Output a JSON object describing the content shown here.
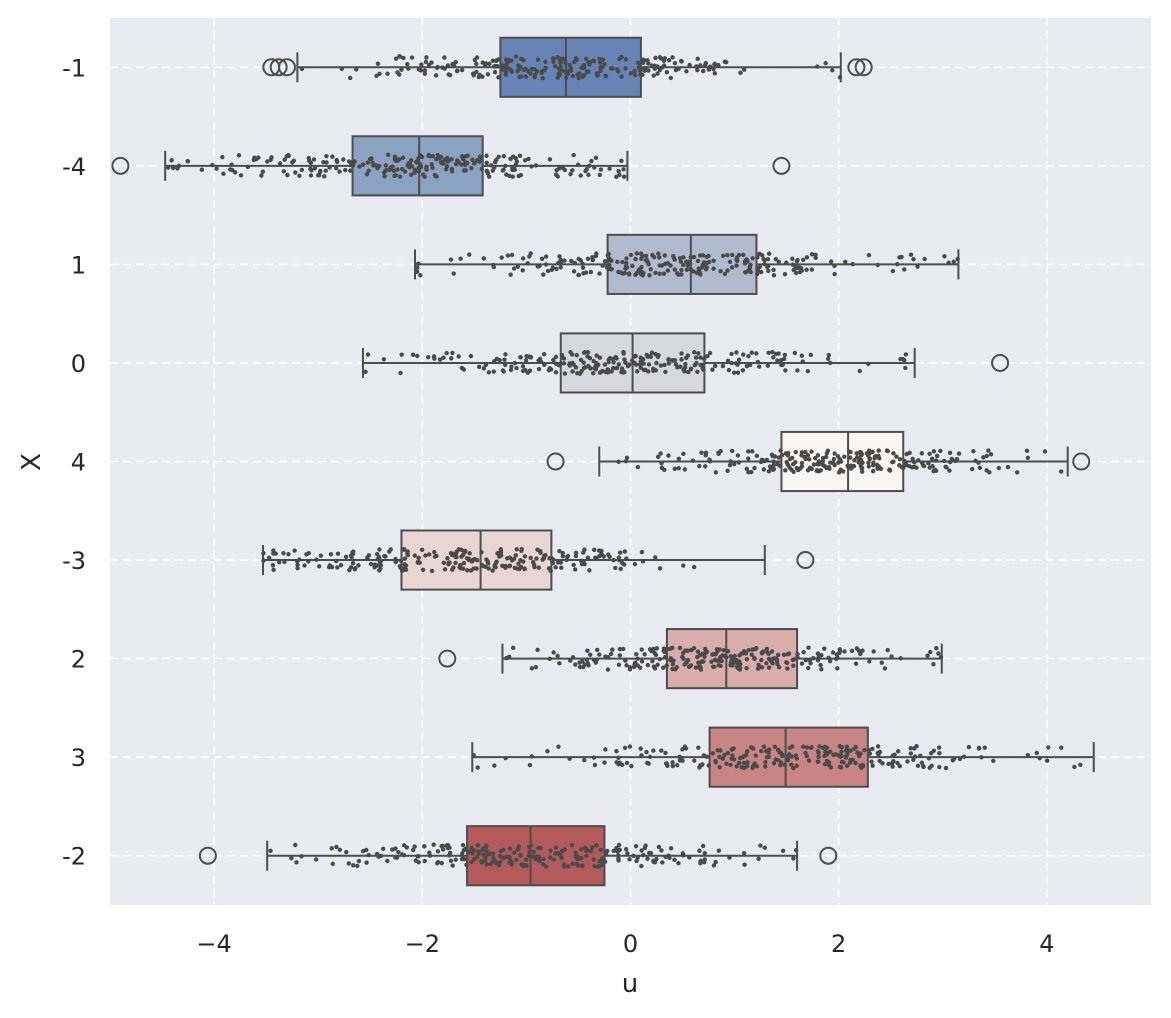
{
  "chart_data": {
    "type": "boxplot",
    "orientation": "horizontal",
    "xlabel": "u",
    "ylabel": "X",
    "xlim": [
      -5.0,
      5.0
    ],
    "xticks": [
      -4,
      -2,
      0,
      2,
      4
    ],
    "xtick_labels": [
      "−4",
      "−2",
      "0",
      "2",
      "4"
    ],
    "grid": true,
    "style": "seaborn-darkgrid-dashed",
    "colors": {
      "background": "#eaeaf2",
      "grid": "#ffffff",
      "edge": "#4d4d4d",
      "points": "#4a4a4a"
    },
    "categories": [
      "-1",
      "-4",
      "1",
      "0",
      "4",
      "-3",
      "2",
      "3",
      "-2"
    ],
    "boxes": [
      {
        "category": "-1",
        "whisker_low": -3.2,
        "q1": -1.25,
        "median": -0.62,
        "q3": 0.1,
        "whisker_high": 2.02,
        "outliers": [
          -3.45,
          -3.38,
          -3.3,
          2.17,
          2.24
        ],
        "color": "#6685b6"
      },
      {
        "category": "-4",
        "whisker_low": -4.47,
        "q1": -2.67,
        "median": -2.03,
        "q3": -1.42,
        "whisker_high": -0.03,
        "outliers": [
          -4.9,
          1.45
        ],
        "color": "#8ca2c3"
      },
      {
        "category": "1",
        "whisker_low": -2.07,
        "q1": -0.22,
        "median": 0.58,
        "q3": 1.21,
        "whisker_high": 3.15,
        "outliers": [],
        "color": "#b1bbcf"
      },
      {
        "category": "0",
        "whisker_low": -2.57,
        "q1": -0.67,
        "median": 0.02,
        "q3": 0.71,
        "whisker_high": 2.73,
        "outliers": [
          3.55
        ],
        "color": "#d5d8de"
      },
      {
        "category": "4",
        "whisker_low": -0.3,
        "q1": 1.45,
        "median": 2.09,
        "q3": 2.62,
        "whisker_high": 4.2,
        "outliers": [
          -0.72,
          4.33
        ],
        "color": "#f8f5f3"
      },
      {
        "category": "-3",
        "whisker_low": -3.53,
        "q1": -2.2,
        "median": -1.44,
        "q3": -0.76,
        "whisker_high": 1.29,
        "outliers": [
          1.68
        ],
        "color": "#e9d5d3"
      },
      {
        "category": "2",
        "whisker_low": -1.23,
        "q1": 0.35,
        "median": 0.92,
        "q3": 1.6,
        "whisker_high": 2.99,
        "outliers": [
          -1.76
        ],
        "color": "#d9adab"
      },
      {
        "category": "3",
        "whisker_low": -1.52,
        "q1": 0.76,
        "median": 1.49,
        "q3": 2.28,
        "whisker_high": 4.45,
        "outliers": [],
        "color": "#c98583"
      },
      {
        "category": "-2",
        "whisker_low": -3.49,
        "q1": -1.57,
        "median": -0.96,
        "q3": -0.25,
        "whisker_high": 1.6,
        "outliers": [
          -4.06,
          1.9
        ],
        "color": "#b45a5a"
      }
    ],
    "jitter_points": {
      "count_per_category": 250,
      "distribution": "normal",
      "parameters": [
        {
          "category": "-1",
          "mean": -0.6,
          "sd": 1.0
        },
        {
          "category": "-4",
          "mean": -2.05,
          "sd": 0.95
        },
        {
          "category": "1",
          "mean": 0.5,
          "sd": 1.05
        },
        {
          "category": "0",
          "mean": 0.0,
          "sd": 1.0
        },
        {
          "category": "4",
          "mean": 2.05,
          "sd": 0.85
        },
        {
          "category": "-3",
          "mean": -1.5,
          "sd": 1.05
        },
        {
          "category": "2",
          "mean": 0.95,
          "sd": 0.9
        },
        {
          "category": "3",
          "mean": 1.5,
          "sd": 1.05
        },
        {
          "category": "-2",
          "mean": -0.95,
          "sd": 1.05
        }
      ]
    }
  }
}
